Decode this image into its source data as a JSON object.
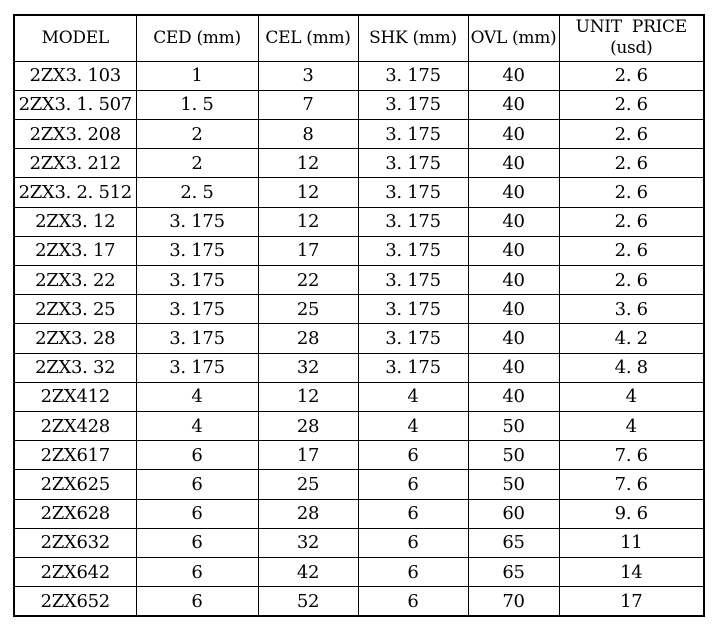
{
  "colors": {
    "background": "#ffffff",
    "border": "#000000",
    "text": "#000000"
  },
  "table": {
    "columns": [
      "MODEL",
      "CED (mm)",
      "CEL (mm)",
      "SHK (mm)",
      "OVL (mm)",
      "UNIT  PRICE\n(usd)"
    ],
    "rows": [
      [
        "2ZX3. 103",
        "1",
        "3",
        "3. 175",
        "40",
        "2. 6"
      ],
      [
        "2ZX3. 1. 507",
        "1. 5",
        "7",
        "3. 175",
        "40",
        "2. 6"
      ],
      [
        "2ZX3. 208",
        "2",
        "8",
        "3. 175",
        "40",
        "2. 6"
      ],
      [
        "2ZX3. 212",
        "2",
        "12",
        "3. 175",
        "40",
        "2. 6"
      ],
      [
        "2ZX3. 2. 512",
        "2. 5",
        "12",
        "3. 175",
        "40",
        "2. 6"
      ],
      [
        "2ZX3. 12",
        "3. 175",
        "12",
        "3. 175",
        "40",
        "2. 6"
      ],
      [
        "2ZX3. 17",
        "3. 175",
        "17",
        "3. 175",
        "40",
        "2. 6"
      ],
      [
        "2ZX3. 22",
        "3. 175",
        "22",
        "3. 175",
        "40",
        "2. 6"
      ],
      [
        "2ZX3. 25",
        "3. 175",
        "25",
        "3. 175",
        "40",
        "3. 6"
      ],
      [
        "2ZX3. 28",
        "3. 175",
        "28",
        "3. 175",
        "40",
        "4. 2"
      ],
      [
        "2ZX3. 32",
        "3. 175",
        "32",
        "3. 175",
        "40",
        "4. 8"
      ],
      [
        "2ZX412",
        "4",
        "12",
        "4",
        "40",
        "4"
      ],
      [
        "2ZX428",
        "4",
        "28",
        "4",
        "50",
        "4"
      ],
      [
        "2ZX617",
        "6",
        "17",
        "6",
        "50",
        "7. 6"
      ],
      [
        "2ZX625",
        "6",
        "25",
        "6",
        "50",
        "7. 6"
      ],
      [
        "2ZX628",
        "6",
        "28",
        "6",
        "60",
        "9. 6"
      ],
      [
        "2ZX632",
        "6",
        "32",
        "6",
        "65",
        "11"
      ],
      [
        "2ZX642",
        "6",
        "42",
        "6",
        "65",
        "14"
      ],
      [
        "2ZX652",
        "6",
        "52",
        "6",
        "70",
        "17"
      ]
    ]
  },
  "chart_data": {
    "type": "table",
    "title": "",
    "columns": [
      "MODEL",
      "CED (mm)",
      "CEL (mm)",
      "SHK (mm)",
      "OVL (mm)",
      "UNIT PRICE (usd)"
    ],
    "rows": [
      [
        "2ZX3.103",
        1,
        3,
        3.175,
        40,
        2.6
      ],
      [
        "2ZX3.1.507",
        1.5,
        7,
        3.175,
        40,
        2.6
      ],
      [
        "2ZX3.208",
        2,
        8,
        3.175,
        40,
        2.6
      ],
      [
        "2ZX3.212",
        2,
        12,
        3.175,
        40,
        2.6
      ],
      [
        "2ZX3.2.512",
        2.5,
        12,
        3.175,
        40,
        2.6
      ],
      [
        "2ZX3.12",
        3.175,
        12,
        3.175,
        40,
        2.6
      ],
      [
        "2ZX3.17",
        3.175,
        17,
        3.175,
        40,
        2.6
      ],
      [
        "2ZX3.22",
        3.175,
        22,
        3.175,
        40,
        2.6
      ],
      [
        "2ZX3.25",
        3.175,
        25,
        3.175,
        40,
        3.6
      ],
      [
        "2ZX3.28",
        3.175,
        28,
        3.175,
        40,
        4.2
      ],
      [
        "2ZX3.32",
        3.175,
        32,
        3.175,
        40,
        4.8
      ],
      [
        "2ZX412",
        4,
        12,
        4,
        40,
        4
      ],
      [
        "2ZX428",
        4,
        28,
        4,
        50,
        4
      ],
      [
        "2ZX617",
        6,
        17,
        6,
        50,
        7.6
      ],
      [
        "2ZX625",
        6,
        25,
        6,
        50,
        7.6
      ],
      [
        "2ZX628",
        6,
        28,
        6,
        60,
        9.6
      ],
      [
        "2ZX632",
        6,
        32,
        6,
        65,
        11
      ],
      [
        "2ZX642",
        6,
        42,
        6,
        65,
        14
      ],
      [
        "2ZX652",
        6,
        52,
        6,
        70,
        17
      ]
    ]
  }
}
